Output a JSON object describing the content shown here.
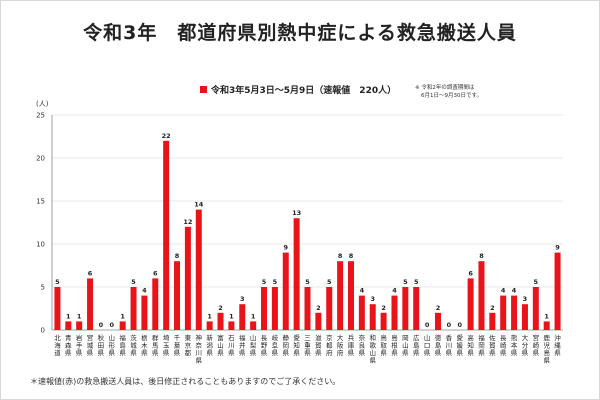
{
  "header": {
    "title": "令和3年　都道府県別熱中症による救急搬送人員"
  },
  "footnote": "＊速報値(赤)の救急搬送人員は、後日修正されることもありますのでご了承ください。",
  "chart_data": {
    "type": "bar",
    "title": "令和3年　都道府県別熱中症による救急搬送人員",
    "ylabel": "(人)",
    "ylim": [
      0,
      25
    ],
    "yticks": [
      0,
      5,
      10,
      15,
      20,
      25
    ],
    "legend": {
      "label": "令和3年5月3日～5月9日（速報値　220人）",
      "placement": "top-center",
      "note_line1": "※ 令和2年の調査期間は",
      "note_line2": "6月1日～9月30日です。"
    },
    "color": "#e8141a",
    "categories": [
      "北海道",
      "青森県",
      "岩手県",
      "宮城県",
      "秋田県",
      "山形県",
      "福島県",
      "茨城県",
      "栃木県",
      "群馬県",
      "埼玉県",
      "千葉県",
      "東京都",
      "神奈川県",
      "新潟県",
      "富山県",
      "石川県",
      "福井県",
      "山梨県",
      "長野県",
      "岐阜県",
      "静岡県",
      "愛知県",
      "三重県",
      "滋賀県",
      "京都府",
      "大阪府",
      "兵庫県",
      "奈良県",
      "和歌山県",
      "鳥取県",
      "島根県",
      "岡山県",
      "広島県",
      "山口県",
      "徳島県",
      "香川県",
      "愛媛県",
      "高知県",
      "福岡県",
      "佐賀県",
      "長崎県",
      "熊本県",
      "大分県",
      "宮崎県",
      "鹿児島県",
      "沖縄県"
    ],
    "values": [
      5,
      1,
      1,
      6,
      0,
      0,
      1,
      5,
      4,
      6,
      22,
      8,
      12,
      14,
      1,
      2,
      1,
      3,
      1,
      5,
      5,
      9,
      13,
      5,
      2,
      5,
      8,
      8,
      4,
      3,
      2,
      4,
      5,
      5,
      0,
      2,
      0,
      0,
      6,
      8,
      2,
      4,
      4,
      3,
      5,
      1,
      9
    ]
  }
}
